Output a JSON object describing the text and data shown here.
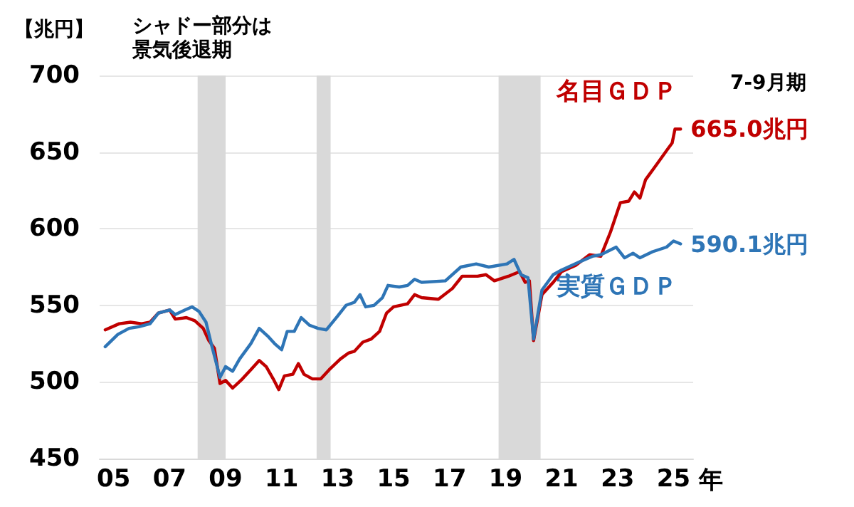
{
  "chart_data": {
    "type": "line",
    "ylabel": "【兆円】",
    "annotations": [
      "シャドー部分は景気後退期",
      "7-9月期",
      "年",
      {
        "text": "665.0兆円",
        "x": 2025.25,
        "y": 665.0
      },
      {
        "text": "590.1兆円",
        "x": 2025.25,
        "y": 590.1
      }
    ],
    "xlim": [
      2004.5,
      2025.7
    ],
    "xticks": [
      {
        "value": 2005,
        "label": "05"
      },
      {
        "value": 2007,
        "label": "07"
      },
      {
        "value": 2009,
        "label": "09"
      },
      {
        "value": 2011,
        "label": "11"
      },
      {
        "value": 2013,
        "label": "13"
      },
      {
        "value": 2015,
        "label": "15"
      },
      {
        "value": 2017,
        "label": "17"
      },
      {
        "value": 2019,
        "label": "19"
      },
      {
        "value": 2021,
        "label": "21"
      },
      {
        "value": 2023,
        "label": "23"
      },
      {
        "value": 2025,
        "label": "25"
      }
    ],
    "ylim": [
      450,
      700
    ],
    "yticks": [
      450,
      500,
      550,
      600,
      650,
      700
    ],
    "grid": "y",
    "legend": false,
    "marker": "none",
    "line_style": "solid",
    "bands": [
      {
        "axis": "x",
        "from": 2008.0,
        "to": 2009.0,
        "color": "#d9d9d9"
      },
      {
        "axis": "x",
        "from": 2012.25,
        "to": 2012.75,
        "color": "#d9d9d9"
      },
      {
        "axis": "x",
        "from": 2018.75,
        "to": 2020.25,
        "color": "#d9d9d9"
      }
    ],
    "series": [
      {
        "name": "名目ＧＤＰ",
        "color": "#c00000",
        "x": [
          2004.7,
          2005.2,
          2005.6,
          2006.0,
          2006.3,
          2006.6,
          2007.0,
          2007.2,
          2007.6,
          2007.9,
          2008.2,
          2008.4,
          2008.6,
          2008.8,
          2009.0,
          2009.25,
          2009.6,
          2009.9,
          2010.2,
          2010.45,
          2010.7,
          2010.9,
          2011.1,
          2011.4,
          2011.6,
          2011.8,
          2012.1,
          2012.4,
          2012.7,
          2013.1,
          2013.4,
          2013.6,
          2013.9,
          2014.2,
          2014.5,
          2014.75,
          2015.0,
          2015.5,
          2015.75,
          2016.0,
          2016.6,
          2017.1,
          2017.45,
          2018.0,
          2018.3,
          2018.6,
          2019.1,
          2019.5,
          2019.7,
          2019.85,
          2020.0,
          2020.3,
          2020.7,
          2021.0,
          2021.5,
          2022.0,
          2022.4,
          2022.75,
          2023.1,
          2023.4,
          2023.6,
          2023.8,
          2024.0,
          2024.4,
          2024.75,
          2024.95,
          2025.05,
          2025.25
        ],
        "values": [
          534,
          538,
          539,
          538,
          539,
          545,
          547,
          541,
          542,
          540,
          535,
          527,
          522,
          499,
          501,
          496,
          502,
          508,
          514,
          510,
          502,
          495,
          504,
          505,
          512,
          505,
          502,
          502,
          508,
          515,
          519,
          520,
          526,
          528,
          533,
          545,
          549,
          551,
          557,
          555,
          554,
          561,
          569,
          569,
          570,
          566,
          569,
          572,
          565,
          566,
          527,
          557,
          565,
          572,
          576,
          583,
          582,
          598,
          617,
          618,
          624,
          620,
          632,
          642,
          651,
          656,
          665,
          665.0
        ]
      },
      {
        "name": "実質ＧＤＰ",
        "color": "#2e75b6",
        "x": [
          2004.7,
          2005.15,
          2005.55,
          2005.9,
          2006.3,
          2006.6,
          2007.0,
          2007.2,
          2007.55,
          2007.8,
          2008.05,
          2008.3,
          2008.5,
          2008.8,
          2009.0,
          2009.25,
          2009.5,
          2009.9,
          2010.2,
          2010.5,
          2010.75,
          2011.0,
          2011.2,
          2011.45,
          2011.7,
          2012.0,
          2012.3,
          2012.6,
          2013.0,
          2013.3,
          2013.6,
          2013.8,
          2014.0,
          2014.3,
          2014.6,
          2014.8,
          2015.2,
          2015.5,
          2015.75,
          2016.0,
          2016.85,
          2017.4,
          2017.95,
          2018.4,
          2019.05,
          2019.3,
          2019.55,
          2019.8,
          2020.0,
          2020.3,
          2020.7,
          2021.0,
          2021.6,
          2022.1,
          2022.4,
          2022.95,
          2023.25,
          2023.55,
          2023.8,
          2024.25,
          2024.75,
          2025.0,
          2025.25
        ],
        "values": [
          523,
          531,
          535,
          536,
          538,
          545,
          547,
          544,
          547,
          549,
          546,
          539,
          524,
          503,
          510,
          507,
          515,
          525,
          535,
          530,
          525,
          521,
          533,
          533,
          542,
          537,
          535,
          534,
          543,
          550,
          552,
          557,
          549,
          550,
          555,
          563,
          562,
          563,
          567,
          565,
          566,
          575,
          577,
          575,
          577,
          580,
          570,
          568,
          528,
          560,
          570,
          573,
          578,
          582,
          583,
          588,
          581,
          584,
          581,
          585,
          588,
          592,
          590.1
        ]
      }
    ]
  }
}
